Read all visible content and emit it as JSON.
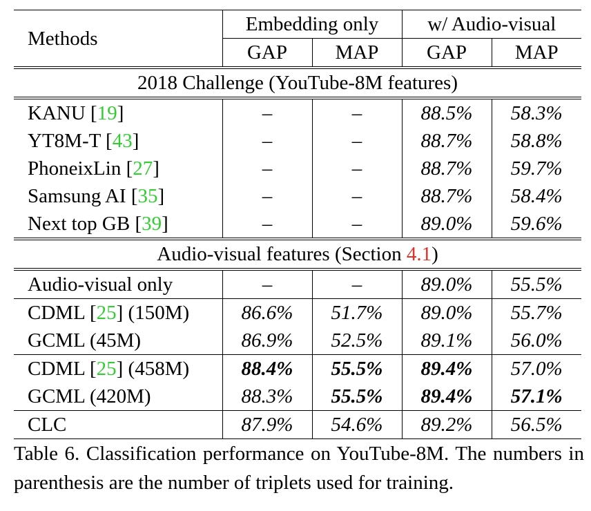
{
  "header": {
    "methods": "Methods",
    "group1": "Embedding only",
    "group2": "w/ Audio-visual",
    "subcols": [
      "GAP",
      "MAP",
      "GAP",
      "MAP"
    ]
  },
  "section1": {
    "title": "2018 Challenge (YouTube-8M features)",
    "rows": [
      {
        "name": "KANU [",
        "ref": "19",
        "close": "]",
        "suffix": "",
        "e_gap": "–",
        "e_map": "–",
        "a_gap": "88.5%",
        "a_map": "58.3%"
      },
      {
        "name": "YT8M-T [",
        "ref": "43",
        "close": "]",
        "suffix": "",
        "e_gap": "–",
        "e_map": "–",
        "a_gap": "88.7%",
        "a_map": "58.8%"
      },
      {
        "name": "PhoneixLin [",
        "ref": "27",
        "close": "]",
        "suffix": "",
        "e_gap": "–",
        "e_map": "–",
        "a_gap": "88.7%",
        "a_map": "59.7%"
      },
      {
        "name": "Samsung AI [",
        "ref": "35",
        "close": "]",
        "suffix": "",
        "e_gap": "–",
        "e_map": "–",
        "a_gap": "88.7%",
        "a_map": "58.4%"
      },
      {
        "name": "Next top GB [",
        "ref": "39",
        "close": "]",
        "suffix": "",
        "e_gap": "–",
        "e_map": "–",
        "a_gap": "89.0%",
        "a_map": "59.6%"
      }
    ]
  },
  "section2": {
    "title_pre": "Audio-visual features (Section ",
    "title_ref": "4.1",
    "title_post": ")",
    "rows": [
      {
        "name": "Audio-visual only",
        "ref": "",
        "close": "",
        "suffix": "",
        "e_gap": "–",
        "e_map": "–",
        "a_gap": "89.0%",
        "a_map": "55.5%"
      },
      {
        "name": "CDML [",
        "ref": "25",
        "close": "]",
        "suffix": " (150M)",
        "e_gap": "86.6%",
        "e_map": "51.7%",
        "a_gap": "89.0%",
        "a_map": "55.7%"
      },
      {
        "name": "GCML (45M)",
        "ref": "",
        "close": "",
        "suffix": "",
        "e_gap": "86.9%",
        "e_map": "52.5%",
        "a_gap": "89.1%",
        "a_map": "56.0%"
      },
      {
        "name": "CDML [",
        "ref": "25",
        "close": "]",
        "suffix": " (458M)",
        "e_gap": "88.4%",
        "e_map": "55.5%",
        "a_gap": "89.4%",
        "a_map": "57.0%"
      },
      {
        "name": "GCML (420M)",
        "ref": "",
        "close": "",
        "suffix": "",
        "e_gap": "88.3%",
        "e_map": "55.5%",
        "a_gap": "89.4%",
        "a_map": "57.1%"
      },
      {
        "name": "CLC",
        "ref": "",
        "close": "",
        "suffix": "",
        "e_gap": "87.9%",
        "e_map": "54.6%",
        "a_gap": "89.2%",
        "a_map": "56.5%"
      }
    ]
  },
  "caption": "Table 6. Classification performance on YouTube-8M. The numbers in parenthesis are the number of triplets used for training."
}
